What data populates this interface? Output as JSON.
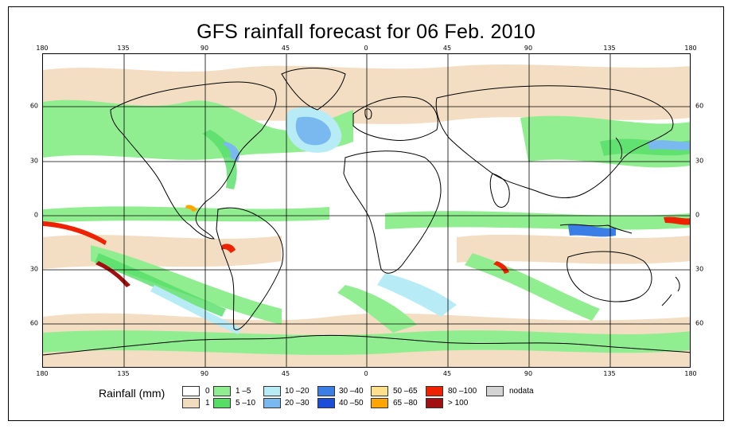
{
  "title": "GFS rainfall forecast for 06 Feb. 2010",
  "lon_ticks": [
    "180",
    "135",
    "90",
    "45",
    "0",
    "45",
    "90",
    "135",
    "180"
  ],
  "lat_ticks": [
    "60",
    "30",
    "0",
    "30",
    "60"
  ],
  "legend": {
    "title": "Rainfall (mm)",
    "items": [
      {
        "label": "0",
        "color": "#ffffff"
      },
      {
        "label": "1",
        "color": "#f2dcc0"
      },
      {
        "label": "1 –5",
        "color": "#90ee90"
      },
      {
        "label": "5 –10",
        "color": "#55dd66"
      },
      {
        "label": "10 –20",
        "color": "#b7ecf7"
      },
      {
        "label": "20 –30",
        "color": "#7ab9f0"
      },
      {
        "label": "30 –40",
        "color": "#3b7fe6"
      },
      {
        "label": "40 –50",
        "color": "#1a4ed8"
      },
      {
        "label": "50 –65",
        "color": "#ffe08a"
      },
      {
        "label": "65 –80",
        "color": "#ffa500"
      },
      {
        "label": "80 –100",
        "color": "#ee2200"
      },
      {
        "label": "> 100",
        "color": "#a01010"
      },
      {
        "label": "nodata",
        "color": "#d3d3d3"
      }
    ]
  }
}
